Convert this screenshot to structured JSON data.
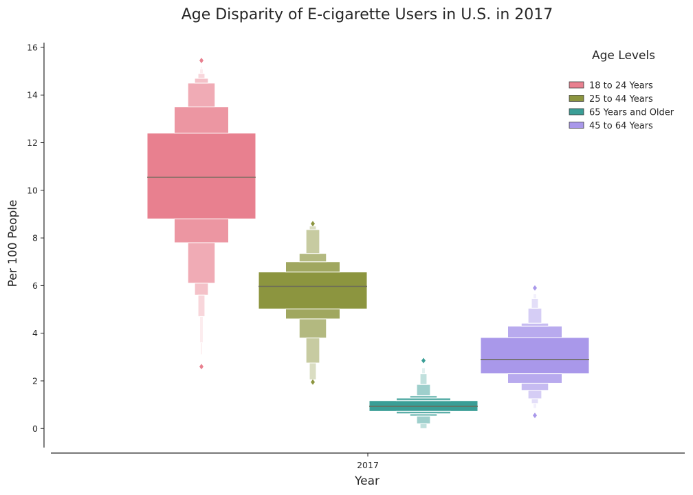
{
  "chart_data": {
    "type": "boxen",
    "title": "Age Disparity of E-cigarette Users in U.S. in 2017",
    "xlabel": "Year",
    "ylabel": "Per 100 People",
    "categories": [
      "2017"
    ],
    "ylim": [
      -0.8,
      16.2
    ],
    "yticks": [
      0,
      2,
      4,
      6,
      8,
      10,
      12,
      14,
      16
    ],
    "grid": false,
    "legend": {
      "title": "Age Levels",
      "placement": "top-right",
      "entries": [
        "18 to 24 Years",
        "25 to 44 Years",
        "65 Years and Older",
        "45 to 64 Years"
      ]
    },
    "series": [
      {
        "name": "18 to 24 Years",
        "color": "#e8808f",
        "median": 10.55,
        "levels": [
          {
            "upper": 12.4,
            "lower": 8.8
          },
          {
            "upper": 13.5,
            "lower": 7.8
          },
          {
            "upper": 14.5,
            "lower": 6.1
          },
          {
            "upper": 14.7,
            "lower": 5.6
          },
          {
            "upper": 14.9,
            "lower": 4.7
          },
          {
            "upper": 15.1,
            "lower": 3.6
          },
          {
            "upper": 15.2,
            "lower": 3.1
          }
        ],
        "outliers": [
          15.45,
          2.6
        ]
      },
      {
        "name": "25 to 44 Years",
        "color": "#8c953f",
        "median": 5.97,
        "levels": [
          {
            "upper": 6.57,
            "lower": 5.02
          },
          {
            "upper": 7.0,
            "lower": 4.6
          },
          {
            "upper": 7.35,
            "lower": 3.8
          },
          {
            "upper": 8.35,
            "lower": 2.75
          },
          {
            "upper": 8.5,
            "lower": 2.05
          }
        ],
        "outliers": [
          8.6,
          1.95
        ]
      },
      {
        "name": "65 Years and Older",
        "color": "#3a9e96",
        "median": 0.93,
        "levels": [
          {
            "upper": 1.17,
            "lower": 0.72
          },
          {
            "upper": 1.28,
            "lower": 0.62
          },
          {
            "upper": 1.38,
            "lower": 0.52
          },
          {
            "upper": 1.85,
            "lower": 0.2
          },
          {
            "upper": 2.3,
            "lower": 0.0
          },
          {
            "upper": 2.55,
            "lower": 0.0
          }
        ],
        "outliers": [
          2.85
        ]
      },
      {
        "name": "45 to 64 Years",
        "color": "#a998ea",
        "median": 2.9,
        "levels": [
          {
            "upper": 3.82,
            "lower": 2.3
          },
          {
            "upper": 4.3,
            "lower": 1.9
          },
          {
            "upper": 4.42,
            "lower": 1.6
          },
          {
            "upper": 5.05,
            "lower": 1.25
          },
          {
            "upper": 5.45,
            "lower": 1.05
          },
          {
            "upper": 5.65,
            "lower": 0.85
          }
        ],
        "outliers": [
          5.9,
          0.55
        ]
      }
    ]
  }
}
